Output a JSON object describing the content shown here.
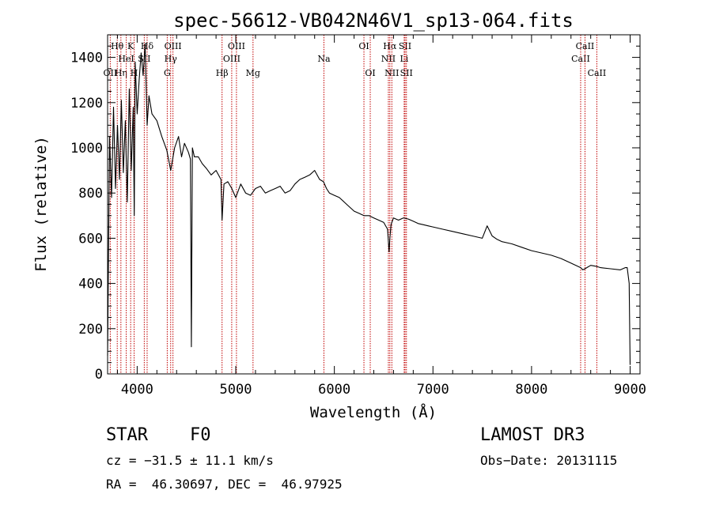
{
  "chart_data": {
    "type": "line",
    "title": "spec-56612-VB042N46V1_sp13-064.fits",
    "xlabel": "Wavelength (Å)",
    "ylabel": "Flux (relative)",
    "xlim": [
      3700,
      9100
    ],
    "ylim": [
      0,
      1500
    ],
    "x_ticks": [
      4000,
      5000,
      6000,
      7000,
      8000,
      9000
    ],
    "y_ticks": [
      0,
      200,
      400,
      600,
      800,
      1000,
      1200,
      1400
    ],
    "series": [
      {
        "name": "flux",
        "x": [
          3700,
          3720,
          3740,
          3760,
          3780,
          3800,
          3820,
          3840,
          3860,
          3880,
          3900,
          3920,
          3940,
          3960,
          3970,
          3980,
          4000,
          4020,
          4040,
          4060,
          4080,
          4101,
          4120,
          4150,
          4200,
          4250,
          4300,
          4340,
          4380,
          4420,
          4450,
          4480,
          4520,
          4540,
          4550,
          4555,
          4560,
          4580,
          4620,
          4660,
          4700,
          4750,
          4800,
          4850,
          4861,
          4880,
          4920,
          4960,
          5000,
          5050,
          5100,
          5150,
          5200,
          5250,
          5300,
          5350,
          5400,
          5450,
          5500,
          5550,
          5600,
          5650,
          5700,
          5750,
          5800,
          5850,
          5890,
          5920,
          5950,
          6000,
          6050,
          6100,
          6150,
          6200,
          6250,
          6300,
          6350,
          6400,
          6450,
          6500,
          6540,
          6555,
          6563,
          6575,
          6600,
          6650,
          6700,
          6750,
          6800,
          6850,
          6900,
          6950,
          7000,
          7100,
          7200,
          7300,
          7400,
          7500,
          7550,
          7600,
          7650,
          7700,
          7800,
          7900,
          8000,
          8100,
          8200,
          8300,
          8400,
          8498,
          8520,
          8542,
          8560,
          8600,
          8662,
          8700,
          8800,
          8900,
          8950,
          8970,
          8990,
          9000
        ],
        "y": [
          80,
          1050,
          780,
          1180,
          820,
          1100,
          860,
          1210,
          890,
          1120,
          760,
          1260,
          900,
          1180,
          700,
          1380,
          1150,
          1300,
          1420,
          1320,
          1460,
          1100,
          1230,
          1150,
          1120,
          1050,
          990,
          900,
          1000,
          1050,
          960,
          1020,
          980,
          950,
          120,
          600,
          1000,
          960,
          960,
          930,
          910,
          880,
          900,
          860,
          680,
          840,
          850,
          820,
          780,
          840,
          800,
          790,
          820,
          830,
          800,
          810,
          820,
          830,
          800,
          810,
          840,
          860,
          870,
          880,
          900,
          860,
          850,
          820,
          800,
          790,
          780,
          760,
          740,
          720,
          710,
          700,
          700,
          690,
          680,
          670,
          640,
          540,
          600,
          660,
          690,
          680,
          690,
          685,
          675,
          665,
          660,
          655,
          650,
          640,
          630,
          620,
          610,
          600,
          655,
          610,
          595,
          585,
          575,
          560,
          545,
          535,
          525,
          510,
          490,
          470,
          460,
          465,
          470,
          480,
          475,
          470,
          465,
          460,
          470,
          470,
          400,
          40
        ]
      }
    ],
    "lines": [
      {
        "name": "Hθ",
        "wavelength": 3798,
        "row": 0
      },
      {
        "name": "OII",
        "wavelength": 3727,
        "row": 2
      },
      {
        "name": "Hη",
        "wavelength": 3835,
        "row": 2
      },
      {
        "name": "HeI",
        "wavelength": 3889,
        "row": 1
      },
      {
        "name": "K",
        "wavelength": 3934,
        "row": 0
      },
      {
        "name": "H",
        "wavelength": 3969,
        "row": 2
      },
      {
        "name": "SII",
        "wavelength": 4072,
        "row": 1
      },
      {
        "name": "Hδ",
        "wavelength": 4101,
        "row": 0
      },
      {
        "name": "G",
        "wavelength": 4305,
        "row": 2
      },
      {
        "name": "Hγ",
        "wavelength": 4340,
        "row": 1
      },
      {
        "name": "OIII",
        "wavelength": 4363,
        "row": 0
      },
      {
        "name": "Hβ",
        "wavelength": 4861,
        "row": 2
      },
      {
        "name": "OIII",
        "wavelength": 4959,
        "row": 1
      },
      {
        "name": "OIII",
        "wavelength": 5007,
        "row": 0
      },
      {
        "name": "Mg",
        "wavelength": 5175,
        "row": 2
      },
      {
        "name": "Na",
        "wavelength": 5894,
        "row": 1
      },
      {
        "name": "OI",
        "wavelength": 6300,
        "row": 0
      },
      {
        "name": "OI",
        "wavelength": 6364,
        "row": 2
      },
      {
        "name": "NII",
        "wavelength": 6548,
        "row": 1
      },
      {
        "name": "Hα",
        "wavelength": 6563,
        "row": 0
      },
      {
        "name": "NII",
        "wavelength": 6583,
        "row": 2
      },
      {
        "name": "Li",
        "wavelength": 6708,
        "row": 1
      },
      {
        "name": "SII",
        "wavelength": 6717,
        "row": 0
      },
      {
        "name": "SII",
        "wavelength": 6731,
        "row": 2
      },
      {
        "name": "CaII",
        "wavelength": 8498,
        "row": 1
      },
      {
        "name": "CaII",
        "wavelength": 8542,
        "row": 0
      },
      {
        "name": "CaII",
        "wavelength": 8662,
        "row": 2
      }
    ],
    "colors": {
      "spectrum": "#000000",
      "lines": "#c00000",
      "axes": "#000000"
    }
  },
  "info": {
    "object": "STAR",
    "subclass": "F0",
    "survey": "LAMOST DR3",
    "cz": "cz = −31.5 ± 11.1 km/s",
    "obs_date": "Obs−Date: 20131115",
    "coords": "RA =  46.30697, DEC =  46.97925"
  }
}
